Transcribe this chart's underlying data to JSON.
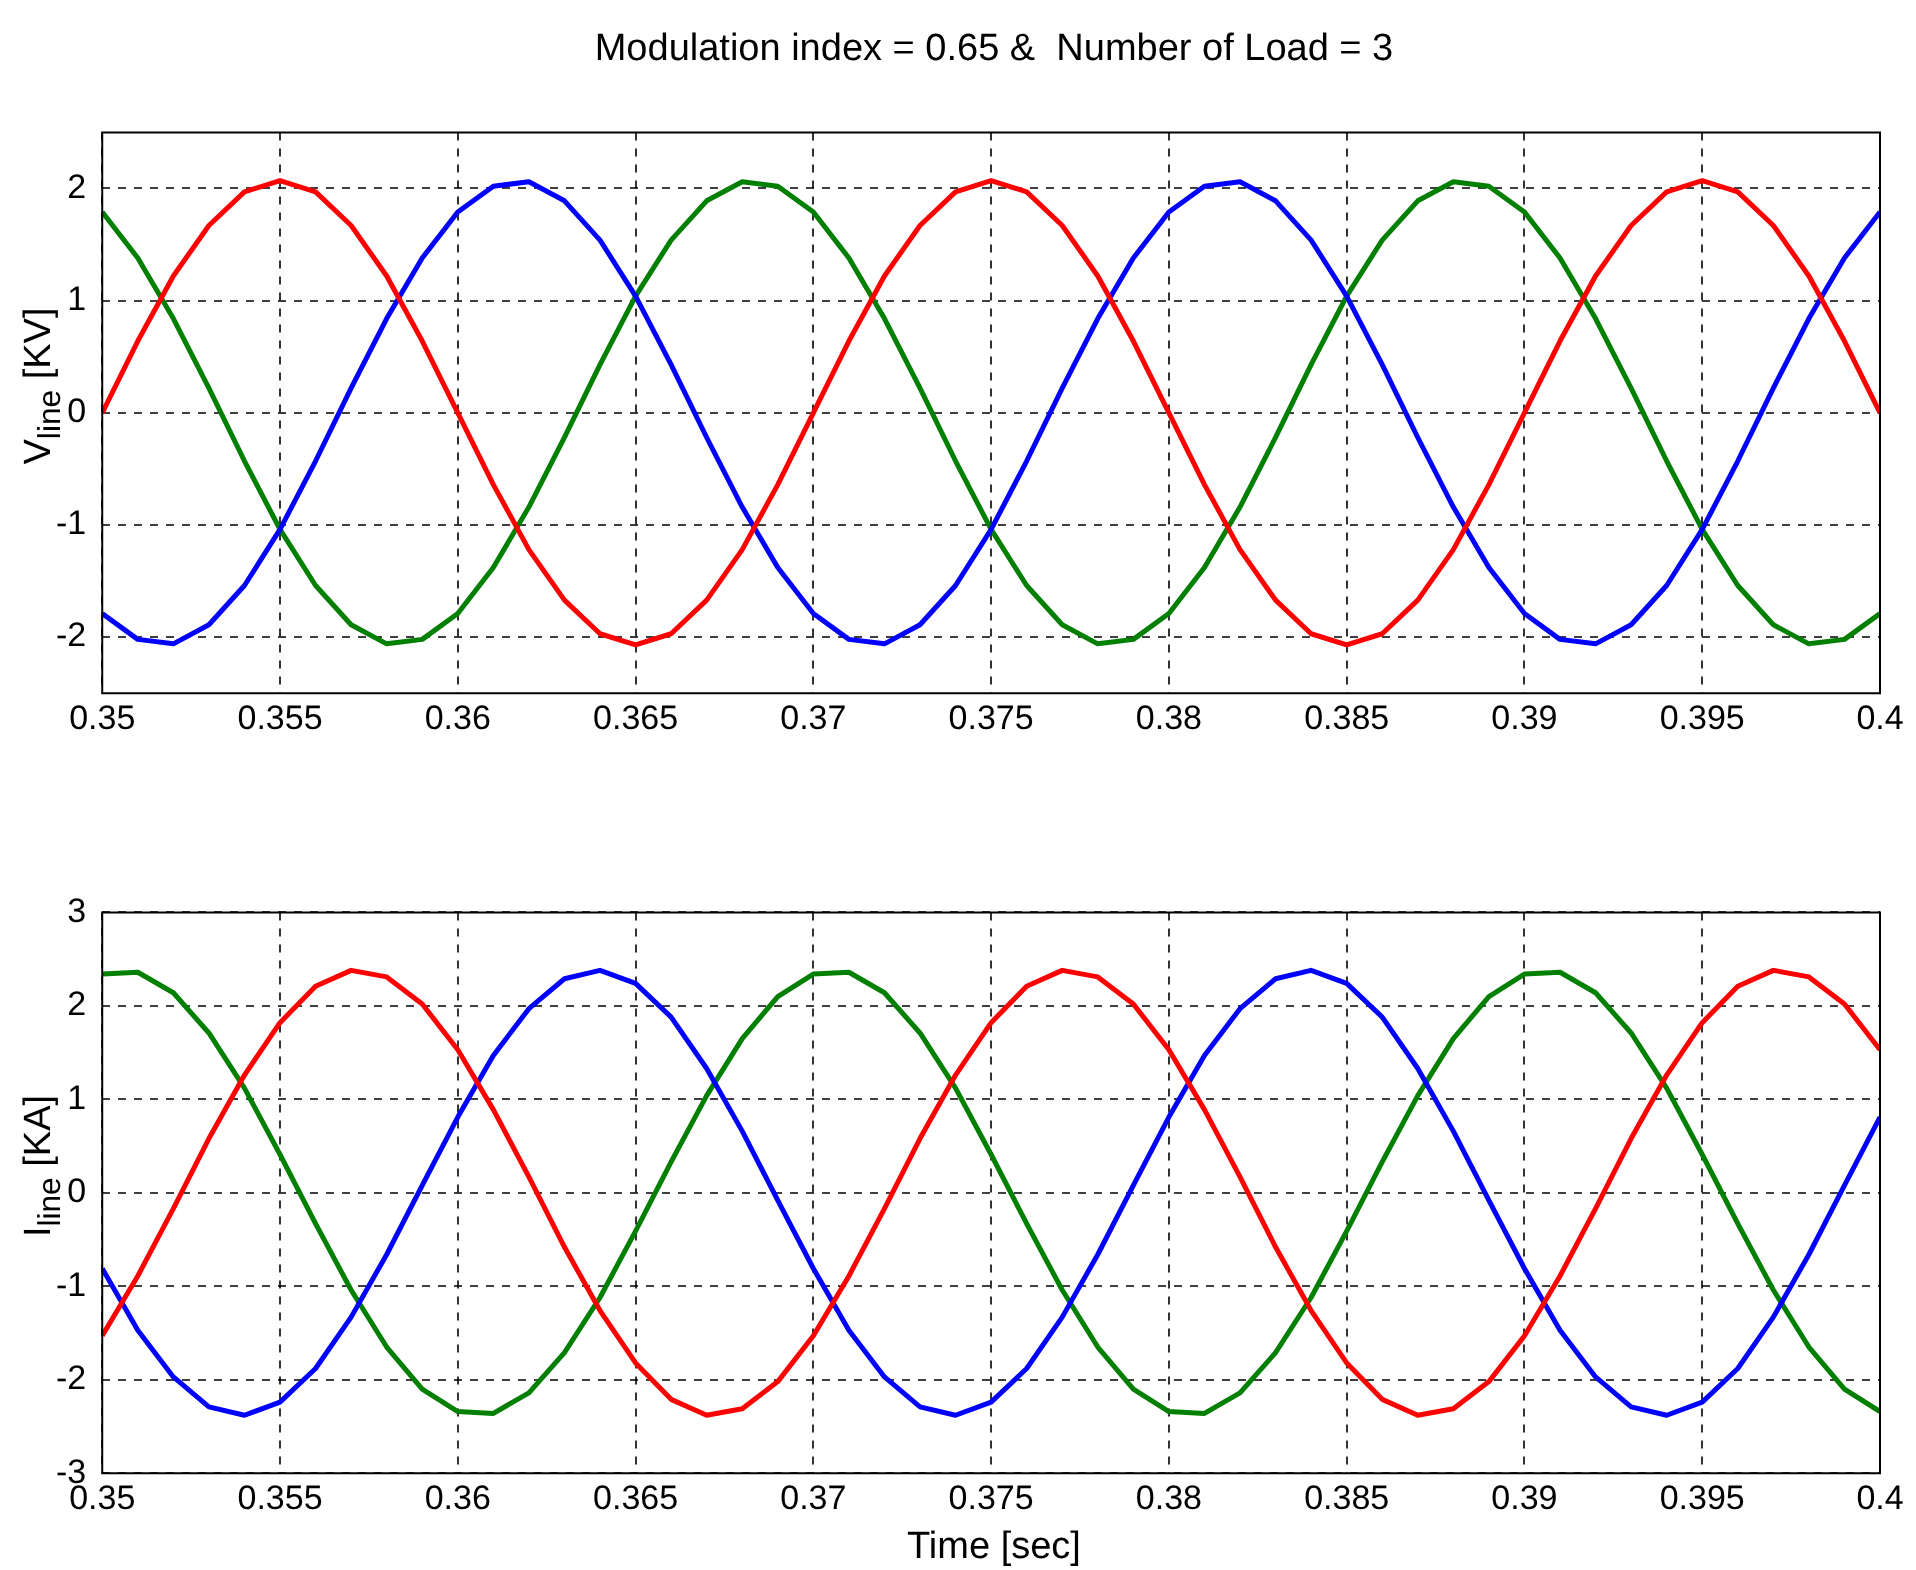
{
  "chart_data": [
    {
      "type": "line",
      "title": "Modulation index = 0.65 &  Number of Load = 3",
      "ylabel": "V$_{line}$ [KV]",
      "x": [
        0.35,
        0.351,
        0.352,
        0.353,
        0.354,
        0.355,
        0.356,
        0.357,
        0.358,
        0.359,
        0.36,
        0.361,
        0.362,
        0.363,
        0.364,
        0.365,
        0.366,
        0.367,
        0.368,
        0.369,
        0.37,
        0.371,
        0.372,
        0.373,
        0.374,
        0.375,
        0.376,
        0.377,
        0.378,
        0.379,
        0.38,
        0.381,
        0.382,
        0.383,
        0.384,
        0.385,
        0.386,
        0.387,
        0.388,
        0.389,
        0.39,
        0.391,
        0.392,
        0.393,
        0.394,
        0.395,
        0.396,
        0.397,
        0.398,
        0.399,
        0.4
      ],
      "series": [
        {
          "color": "#ff0000",
          "values": [
            0,
            0.64,
            1.22,
            1.67,
            1.97,
            2.07,
            1.97,
            1.67,
            1.22,
            0.64,
            0,
            -0.64,
            -1.22,
            -1.67,
            -1.97,
            -2.07,
            -1.97,
            -1.67,
            -1.22,
            -0.64,
            0,
            0.64,
            1.22,
            1.67,
            1.97,
            2.07,
            1.97,
            1.67,
            1.22,
            0.64,
            0,
            -0.64,
            -1.22,
            -1.67,
            -1.97,
            -2.07,
            -1.97,
            -1.67,
            -1.22,
            -0.64,
            0,
            0.64,
            1.22,
            1.67,
            1.97,
            2.07,
            1.97,
            1.67,
            1.22,
            0.64,
            0
          ]
        },
        {
          "color": "#0000ff",
          "values": [
            -1.79,
            -2.02,
            -2.06,
            -1.89,
            -1.54,
            -1.04,
            -0.43,
            0.22,
            0.84,
            1.38,
            1.79,
            2.02,
            2.06,
            1.89,
            1.54,
            1.04,
            0.43,
            -0.22,
            -0.84,
            -1.38,
            -1.79,
            -2.02,
            -2.06,
            -1.89,
            -1.54,
            -1.04,
            -0.43,
            0.22,
            0.84,
            1.38,
            1.79,
            2.02,
            2.06,
            1.89,
            1.54,
            1.04,
            0.43,
            -0.22,
            -0.84,
            -1.38,
            -1.79,
            -2.02,
            -2.06,
            -1.89,
            -1.54,
            -1.04,
            -0.43,
            0.22,
            0.84,
            1.38,
            1.79
          ]
        },
        {
          "color": "#007f00",
          "values": [
            1.79,
            1.38,
            0.84,
            0.22,
            -0.43,
            -1.04,
            -1.54,
            -1.89,
            -2.06,
            -2.02,
            -1.79,
            -1.38,
            -0.84,
            -0.22,
            0.43,
            1.04,
            1.54,
            1.89,
            2.06,
            2.02,
            1.79,
            1.38,
            0.84,
            0.22,
            -0.43,
            -1.04,
            -1.54,
            -1.89,
            -2.06,
            -2.02,
            -1.79,
            -1.38,
            -0.84,
            -0.22,
            0.43,
            1.04,
            1.54,
            1.89,
            2.06,
            2.02,
            1.79,
            1.38,
            0.84,
            0.22,
            -0.43,
            -1.04,
            -1.54,
            -1.89,
            -2.06,
            -2.02,
            -1.79
          ]
        }
      ],
      "xlim": [
        0.35,
        0.4
      ],
      "xticks": [
        0.35,
        0.355,
        0.36,
        0.365,
        0.37,
        0.375,
        0.38,
        0.385,
        0.39,
        0.395,
        0.4
      ],
      "ylim": [
        -2.5,
        2.5
      ],
      "yticks": [
        -2,
        -1,
        0,
        1,
        2
      ],
      "grid": true,
      "legend": false
    },
    {
      "type": "line",
      "xlabel": "Time [sec]",
      "ylabel": "I$_{line}$ [KA]",
      "x": [
        0.35,
        0.351,
        0.352,
        0.353,
        0.354,
        0.355,
        0.356,
        0.357,
        0.358,
        0.359,
        0.36,
        0.361,
        0.362,
        0.363,
        0.364,
        0.365,
        0.366,
        0.367,
        0.368,
        0.369,
        0.37,
        0.371,
        0.372,
        0.373,
        0.374,
        0.375,
        0.376,
        0.377,
        0.378,
        0.379,
        0.38,
        0.381,
        0.382,
        0.383,
        0.384,
        0.385,
        0.386,
        0.387,
        0.388,
        0.389,
        0.39,
        0.391,
        0.392,
        0.393,
        0.394,
        0.395,
        0.396,
        0.397,
        0.398,
        0.399,
        0.4
      ],
      "series": [
        {
          "color": "#ff0000",
          "values": [
            -1.53,
            -0.89,
            -0.17,
            0.58,
            1.26,
            1.82,
            2.21,
            2.38,
            2.31,
            2.02,
            1.53,
            0.89,
            0.17,
            -0.58,
            -1.26,
            -1.82,
            -2.21,
            -2.38,
            -2.31,
            -2.02,
            -1.53,
            -0.89,
            -0.17,
            0.58,
            1.26,
            1.82,
            2.21,
            2.38,
            2.31,
            2.02,
            1.53,
            0.89,
            0.17,
            -0.58,
            -1.26,
            -1.82,
            -2.21,
            -2.38,
            -2.31,
            -2.02,
            -1.53,
            -0.89,
            -0.17,
            0.58,
            1.26,
            1.82,
            2.21,
            2.38,
            2.31,
            2.02,
            1.53
          ]
        },
        {
          "color": "#0000ff",
          "values": [
            -0.81,
            -1.47,
            -1.97,
            -2.29,
            -2.38,
            -2.24,
            -1.88,
            -1.33,
            -0.66,
            0.08,
            0.81,
            1.47,
            1.97,
            2.29,
            2.38,
            2.24,
            1.88,
            1.33,
            0.66,
            -0.08,
            -0.81,
            -1.47,
            -1.97,
            -2.29,
            -2.38,
            -2.24,
            -1.88,
            -1.33,
            -0.66,
            0.08,
            0.81,
            1.47,
            1.97,
            2.29,
            2.38,
            2.24,
            1.88,
            1.33,
            0.66,
            -0.08,
            -0.81,
            -1.47,
            -1.97,
            -2.29,
            -2.38,
            -2.24,
            -1.88,
            -1.33,
            -0.66,
            0.08,
            0.81
          ]
        },
        {
          "color": "#007f00",
          "values": [
            2.34,
            2.36,
            2.14,
            1.71,
            1.12,
            0.41,
            -0.33,
            -1.04,
            -1.65,
            -2.1,
            -2.34,
            -2.36,
            -2.14,
            -1.71,
            -1.12,
            -0.41,
            0.33,
            1.04,
            1.65,
            2.1,
            2.34,
            2.36,
            2.14,
            1.71,
            1.12,
            0.41,
            -0.33,
            -1.04,
            -1.65,
            -2.1,
            -2.34,
            -2.36,
            -2.14,
            -1.71,
            -1.12,
            -0.41,
            0.33,
            1.04,
            1.65,
            2.1,
            2.34,
            2.36,
            2.14,
            1.71,
            1.12,
            0.41,
            -0.33,
            -1.04,
            -1.65,
            -2.1,
            -2.34
          ]
        }
      ],
      "xlim": [
        0.35,
        0.4
      ],
      "xticks": [
        0.35,
        0.355,
        0.36,
        0.365,
        0.37,
        0.375,
        0.38,
        0.385,
        0.39,
        0.395,
        0.4
      ],
      "ylim": [
        -3,
        3
      ],
      "yticks": [
        -3,
        -2,
        -1,
        0,
        1,
        2,
        3
      ],
      "grid": true,
      "legend": false
    }
  ]
}
